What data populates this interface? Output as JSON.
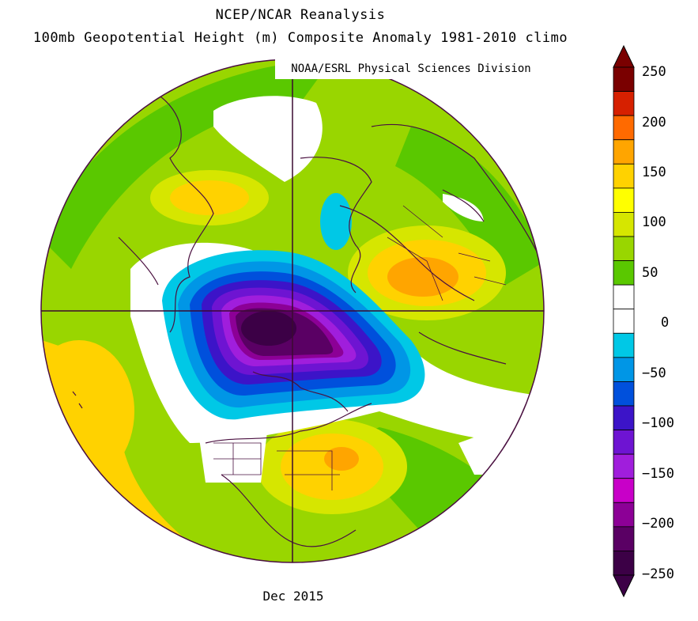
{
  "header": {
    "line1": "NCEP/NCAR Reanalysis",
    "line2": "100mb Geopotential Height (m) Composite Anomaly 1981-2010 climo"
  },
  "credit": "NOAA/ESRL Physical Sciences Division",
  "bottom_label": "Dec 2015",
  "colorbar": {
    "labels": [
      "250",
      "200",
      "150",
      "100",
      "50",
      "0",
      "-50",
      "-100",
      "-150",
      "-200",
      "-250"
    ],
    "colors": [
      "#7a0000",
      "#d62000",
      "#ff6a00",
      "#ffa500",
      "#ffd200",
      "#ffff00",
      "#d6e600",
      "#99d600",
      "#5ac800",
      "#ffffff",
      "#ffffff",
      "#00c8e6",
      "#0096e6",
      "#0050dc",
      "#3c14c8",
      "#6e14d2",
      "#a01edc",
      "#c800c8",
      "#8c0096",
      "#5a0064",
      "#3c0046"
    ]
  },
  "map": {
    "projection": "north-polar-stereographic",
    "ocean_color": "#ffffff",
    "coast_color": "#4a1040"
  }
}
